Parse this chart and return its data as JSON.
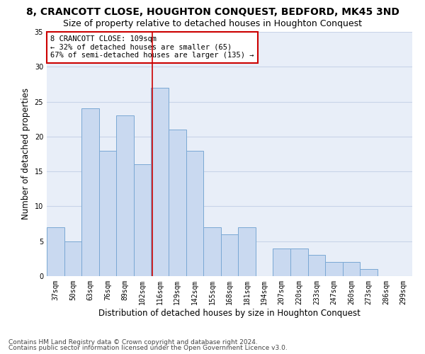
{
  "title": "8, CRANCOTT CLOSE, HOUGHTON CONQUEST, BEDFORD, MK45 3ND",
  "subtitle": "Size of property relative to detached houses in Houghton Conquest",
  "xlabel": "Distribution of detached houses by size in Houghton Conquest",
  "ylabel": "Number of detached properties",
  "categories": [
    "37sqm",
    "50sqm",
    "63sqm",
    "76sqm",
    "89sqm",
    "102sqm",
    "116sqm",
    "129sqm",
    "142sqm",
    "155sqm",
    "168sqm",
    "181sqm",
    "194sqm",
    "207sqm",
    "220sqm",
    "233sqm",
    "247sqm",
    "260sqm",
    "273sqm",
    "286sqm",
    "299sqm"
  ],
  "values": [
    7,
    5,
    24,
    18,
    23,
    16,
    27,
    21,
    18,
    7,
    6,
    7,
    0,
    4,
    4,
    3,
    2,
    2,
    1,
    0,
    0
  ],
  "bar_color": "#c9d9f0",
  "bar_edge_color": "#7aa8d4",
  "vline_x": 5.55,
  "vline_color": "#cc0000",
  "annotation_box_text": "8 CRANCOTT CLOSE: 109sqm\n← 32% of detached houses are smaller (65)\n67% of semi-detached houses are larger (135) →",
  "ylim": [
    0,
    35
  ],
  "yticks": [
    0,
    5,
    10,
    15,
    20,
    25,
    30,
    35
  ],
  "grid_color": "#c8d4e8",
  "background_color": "#e8eef8",
  "footer_line1": "Contains HM Land Registry data © Crown copyright and database right 2024.",
  "footer_line2": "Contains public sector information licensed under the Open Government Licence v3.0.",
  "title_fontsize": 10,
  "subtitle_fontsize": 9,
  "xlabel_fontsize": 8.5,
  "ylabel_fontsize": 8.5,
  "tick_fontsize": 7,
  "annotation_fontsize": 7.5,
  "footer_fontsize": 6.5
}
